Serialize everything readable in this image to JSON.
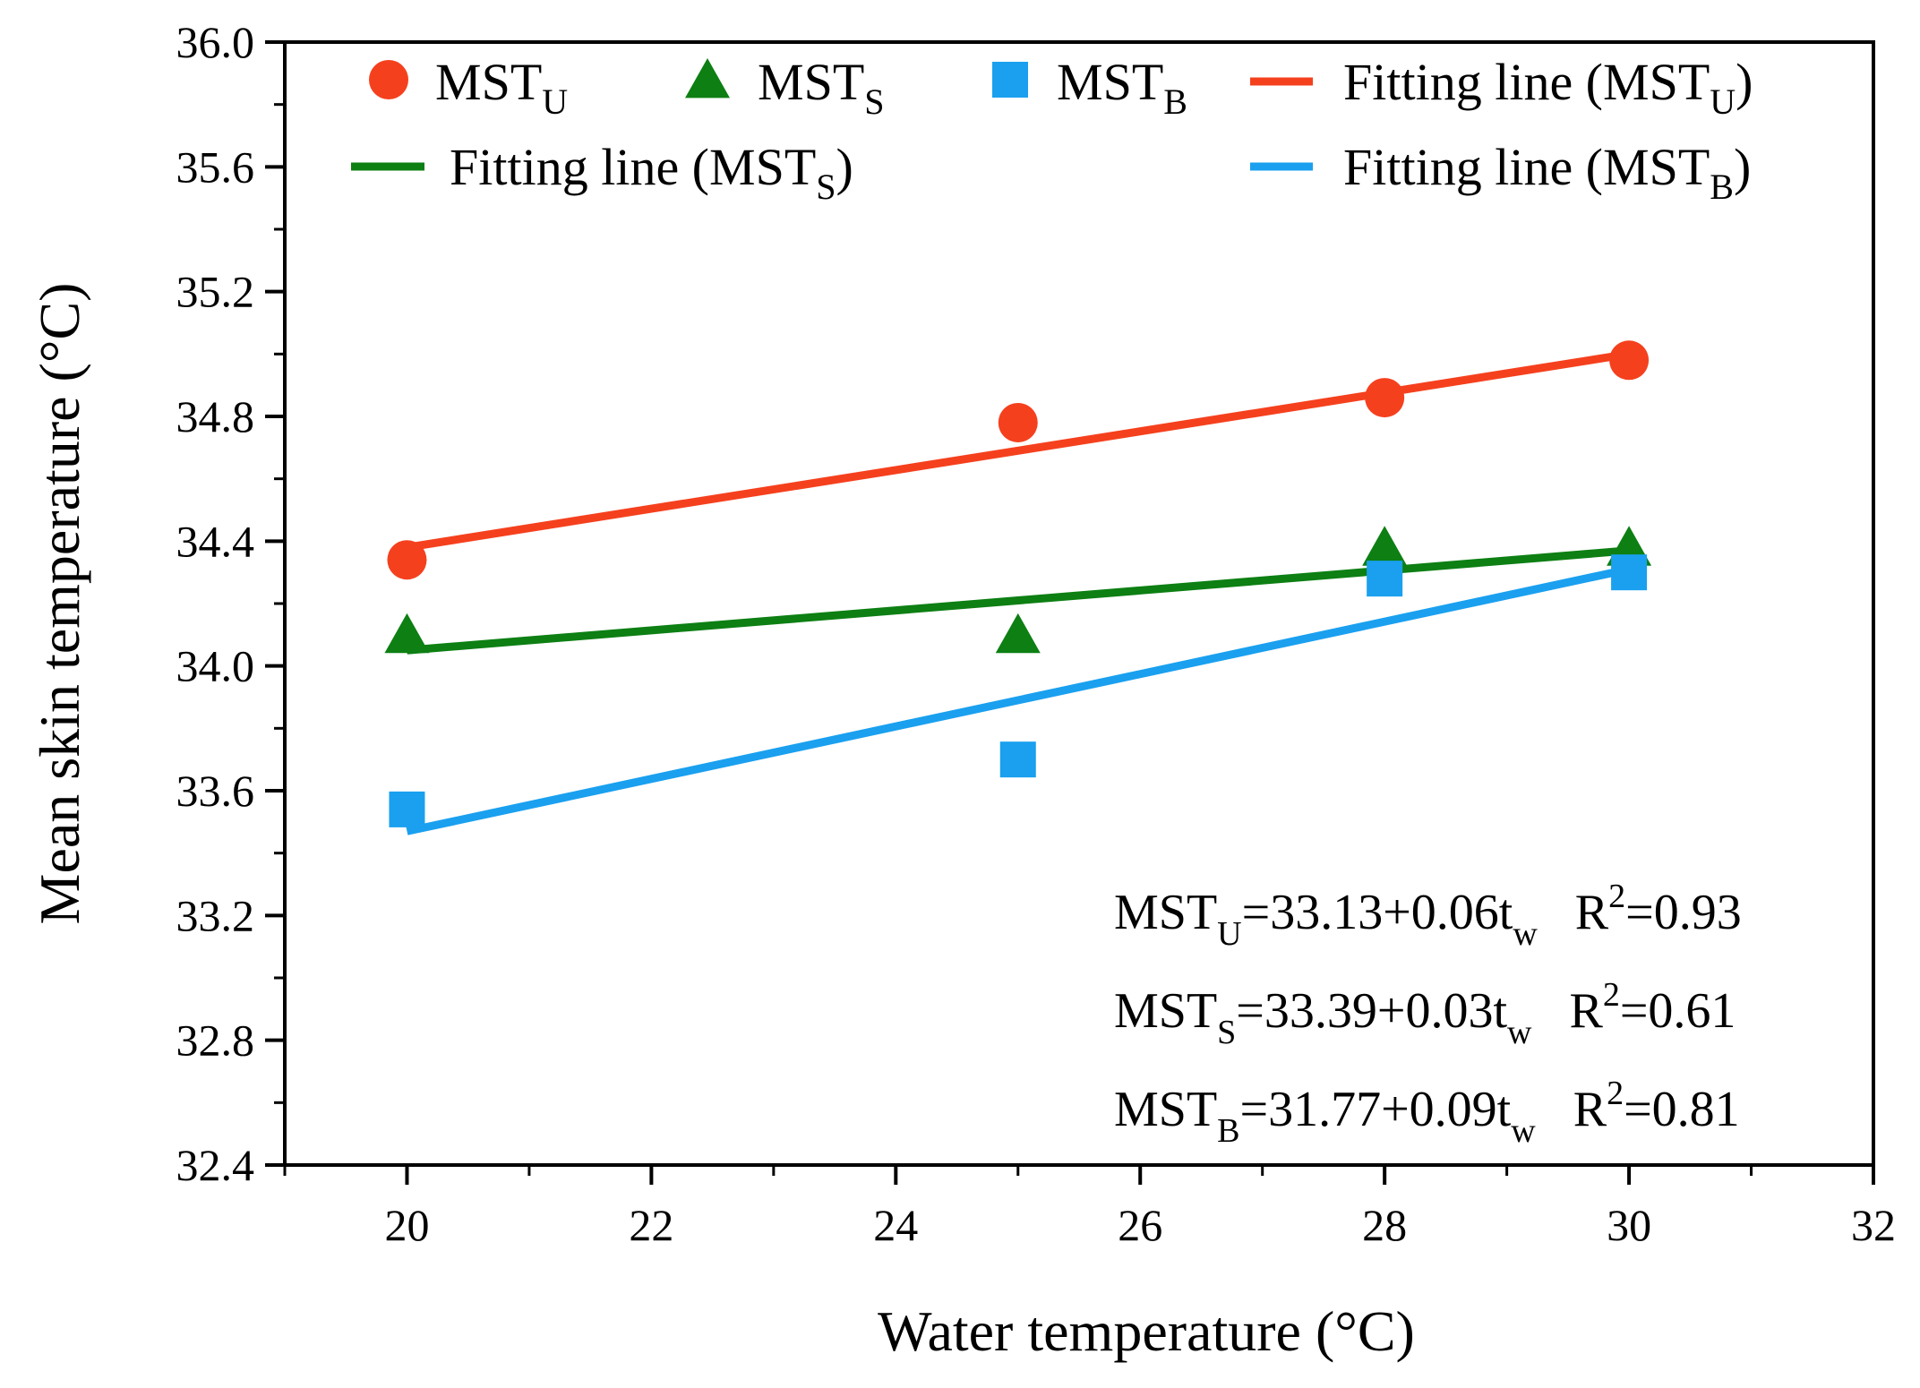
{
  "chart_data": {
    "type": "scatter",
    "xlabel": "Water temperature (°C)",
    "ylabel": "Mean skin temperature (°C)",
    "xlim": [
      19,
      32
    ],
    "ylim": [
      32.4,
      36.0
    ],
    "x_ticks": [
      20,
      22,
      24,
      26,
      28,
      30,
      32
    ],
    "y_ticks": [
      "32.4",
      "32.8",
      "33.2",
      "33.6",
      "34.0",
      "34.4",
      "34.8",
      "35.2",
      "35.6",
      "36.0"
    ],
    "series": [
      {
        "name": "MST_U",
        "marker": "circle",
        "color": "#f5401e",
        "x": [
          20,
          25,
          28,
          30
        ],
        "values": [
          34.34,
          34.78,
          34.86,
          34.98
        ],
        "fit": {
          "intercept": 33.13,
          "slope": 0.06,
          "r2": 0.93
        }
      },
      {
        "name": "MST_S",
        "marker": "triangle",
        "color": "#0d7f13",
        "x": [
          20,
          25,
          28,
          30
        ],
        "values": [
          34.1,
          34.1,
          34.38,
          34.38
        ],
        "fit": {
          "intercept": 33.39,
          "slope": 0.03,
          "r2": 0.61
        }
      },
      {
        "name": "MST_B",
        "marker": "square",
        "color": "#1aa0ef",
        "x": [
          20,
          25,
          28,
          30
        ],
        "values": [
          33.54,
          33.7,
          34.28,
          34.3
        ],
        "fit": {
          "intercept": 31.77,
          "slope": 0.09,
          "r2": 0.81
        }
      }
    ],
    "fit_lines": [
      {
        "series": "MST_U",
        "x": [
          20,
          30
        ],
        "y": [
          34.38,
          35.0
        ]
      },
      {
        "series": "MST_S",
        "x": [
          20,
          30
        ],
        "y": [
          34.05,
          34.37
        ]
      },
      {
        "series": "MST_B",
        "x": [
          20,
          30
        ],
        "y": [
          33.47,
          34.31
        ]
      }
    ],
    "legend": {
      "position": "top",
      "entries": [
        {
          "main": "MST",
          "sub": "U",
          "close": "",
          "swatch": "circle",
          "color": "#f5401e"
        },
        {
          "main": "MST",
          "sub": "S",
          "close": "",
          "swatch": "triangle",
          "color": "#0d7f13"
        },
        {
          "main": "MST",
          "sub": "B",
          "close": "",
          "swatch": "square",
          "color": "#1aa0ef"
        },
        {
          "main": "Fitting line (MST",
          "sub": "U",
          "close": ")",
          "swatch": "line",
          "color": "#f5401e"
        },
        {
          "main": "Fitting line (MST",
          "sub": "S",
          "close": ")",
          "swatch": "line",
          "color": "#0d7f13"
        },
        {
          "main": "Fitting line (MST",
          "sub": "B",
          "close": ")",
          "swatch": "line",
          "color": "#1aa0ef"
        }
      ]
    },
    "annotations": [
      {
        "lhs": "MST",
        "lhs_sub": "U",
        "rhs": "=33.13+0.06t",
        "t_sub": "w",
        "r_label": "R",
        "r_sup": "2",
        "r_val": "=0.93"
      },
      {
        "lhs": "MST",
        "lhs_sub": "S",
        "rhs": "=33.39+0.03t",
        "t_sub": "w",
        "r_label": "R",
        "r_sup": "2",
        "r_val": "=0.61"
      },
      {
        "lhs": "MST",
        "lhs_sub": "B",
        "rhs": "=31.77+0.09t",
        "t_sub": "w",
        "r_label": "R",
        "r_sup": "2",
        "r_val": "=0.81"
      }
    ]
  }
}
